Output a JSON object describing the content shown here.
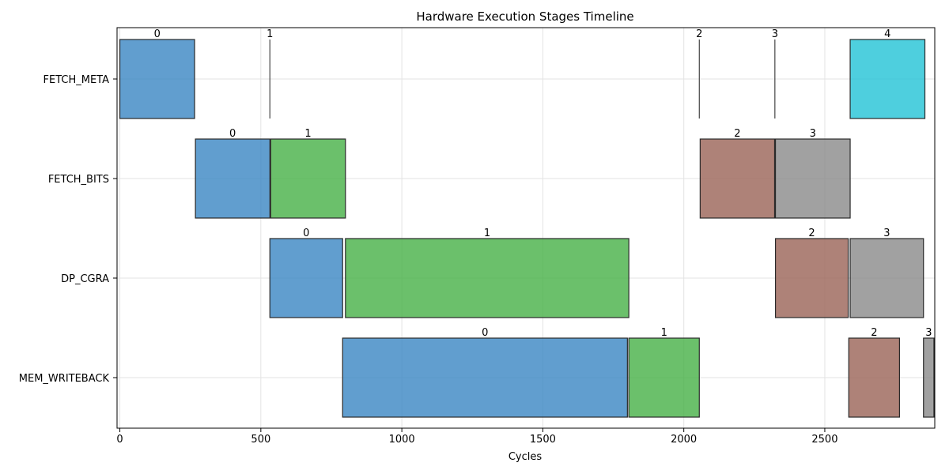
{
  "chart_data": {
    "type": "gantt",
    "title": "Hardware Execution Stages Timeline",
    "xlabel": "Cycles",
    "ylabel": "",
    "xlim": [
      -10,
      2890
    ],
    "x_ticks": [
      0,
      500,
      1000,
      1500,
      2000,
      2500
    ],
    "grid": true,
    "stages": [
      "FETCH_META",
      "FETCH_BITS",
      "DP_CGRA",
      "MEM_WRITEBACK"
    ],
    "colors": {
      "0": "#3a86c3",
      "1": "#46b046",
      "2": "#9a6356",
      "3": "#8a8a8a",
      "4": "#22c3d6"
    },
    "tasks": [
      {
        "stage": "FETCH_META",
        "id": "0",
        "start": 0,
        "end": 265
      },
      {
        "stage": "FETCH_META",
        "id": "1",
        "start": 532,
        "end": 532
      },
      {
        "stage": "FETCH_META",
        "id": "2",
        "start": 2055,
        "end": 2055
      },
      {
        "stage": "FETCH_META",
        "id": "3",
        "start": 2323,
        "end": 2323
      },
      {
        "stage": "FETCH_META",
        "id": "4",
        "start": 2590,
        "end": 2855
      },
      {
        "stage": "FETCH_BITS",
        "id": "0",
        "start": 268,
        "end": 532
      },
      {
        "stage": "FETCH_BITS",
        "id": "1",
        "start": 535,
        "end": 800
      },
      {
        "stage": "FETCH_BITS",
        "id": "2",
        "start": 2058,
        "end": 2322
      },
      {
        "stage": "FETCH_BITS",
        "id": "3",
        "start": 2325,
        "end": 2590
      },
      {
        "stage": "DP_CGRA",
        "id": "0",
        "start": 532,
        "end": 790
      },
      {
        "stage": "DP_CGRA",
        "id": "1",
        "start": 800,
        "end": 1805
      },
      {
        "stage": "DP_CGRA",
        "id": "2",
        "start": 2325,
        "end": 2583
      },
      {
        "stage": "DP_CGRA",
        "id": "3",
        "start": 2590,
        "end": 2850
      },
      {
        "stage": "MEM_WRITEBACK",
        "id": "0",
        "start": 790,
        "end": 1800
      },
      {
        "stage": "MEM_WRITEBACK",
        "id": "1",
        "start": 1805,
        "end": 2055
      },
      {
        "stage": "MEM_WRITEBACK",
        "id": "2",
        "start": 2585,
        "end": 2765
      },
      {
        "stage": "MEM_WRITEBACK",
        "id": "3",
        "start": 2850,
        "end": 2887
      }
    ]
  }
}
